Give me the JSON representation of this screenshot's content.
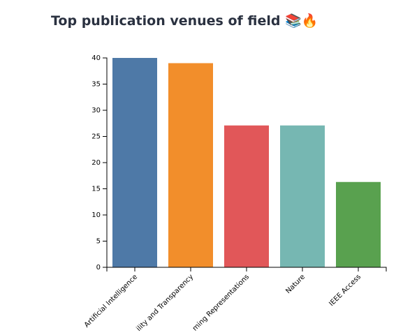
{
  "title": "Top publication venues of field 📚🔥",
  "chart_data": {
    "type": "bar",
    "title": "Top publication venues of field 📚🔥",
    "xlabel": "",
    "ylabel": "",
    "ylim": [
      0,
      40
    ],
    "yticks": [
      0,
      5,
      10,
      15,
      20,
      25,
      30,
      35,
      40
    ],
    "grid": false,
    "categories": [
      "Artificial Intelligence",
      "ility and Transparency",
      "ming Representations",
      "Nature",
      "IEEE Access"
    ],
    "values": [
      40,
      39,
      27.1,
      27.1,
      16.3
    ],
    "colors": [
      "#4e79a7",
      "#f28e2b",
      "#e15759",
      "#76b7b2",
      "#59a14f"
    ]
  }
}
